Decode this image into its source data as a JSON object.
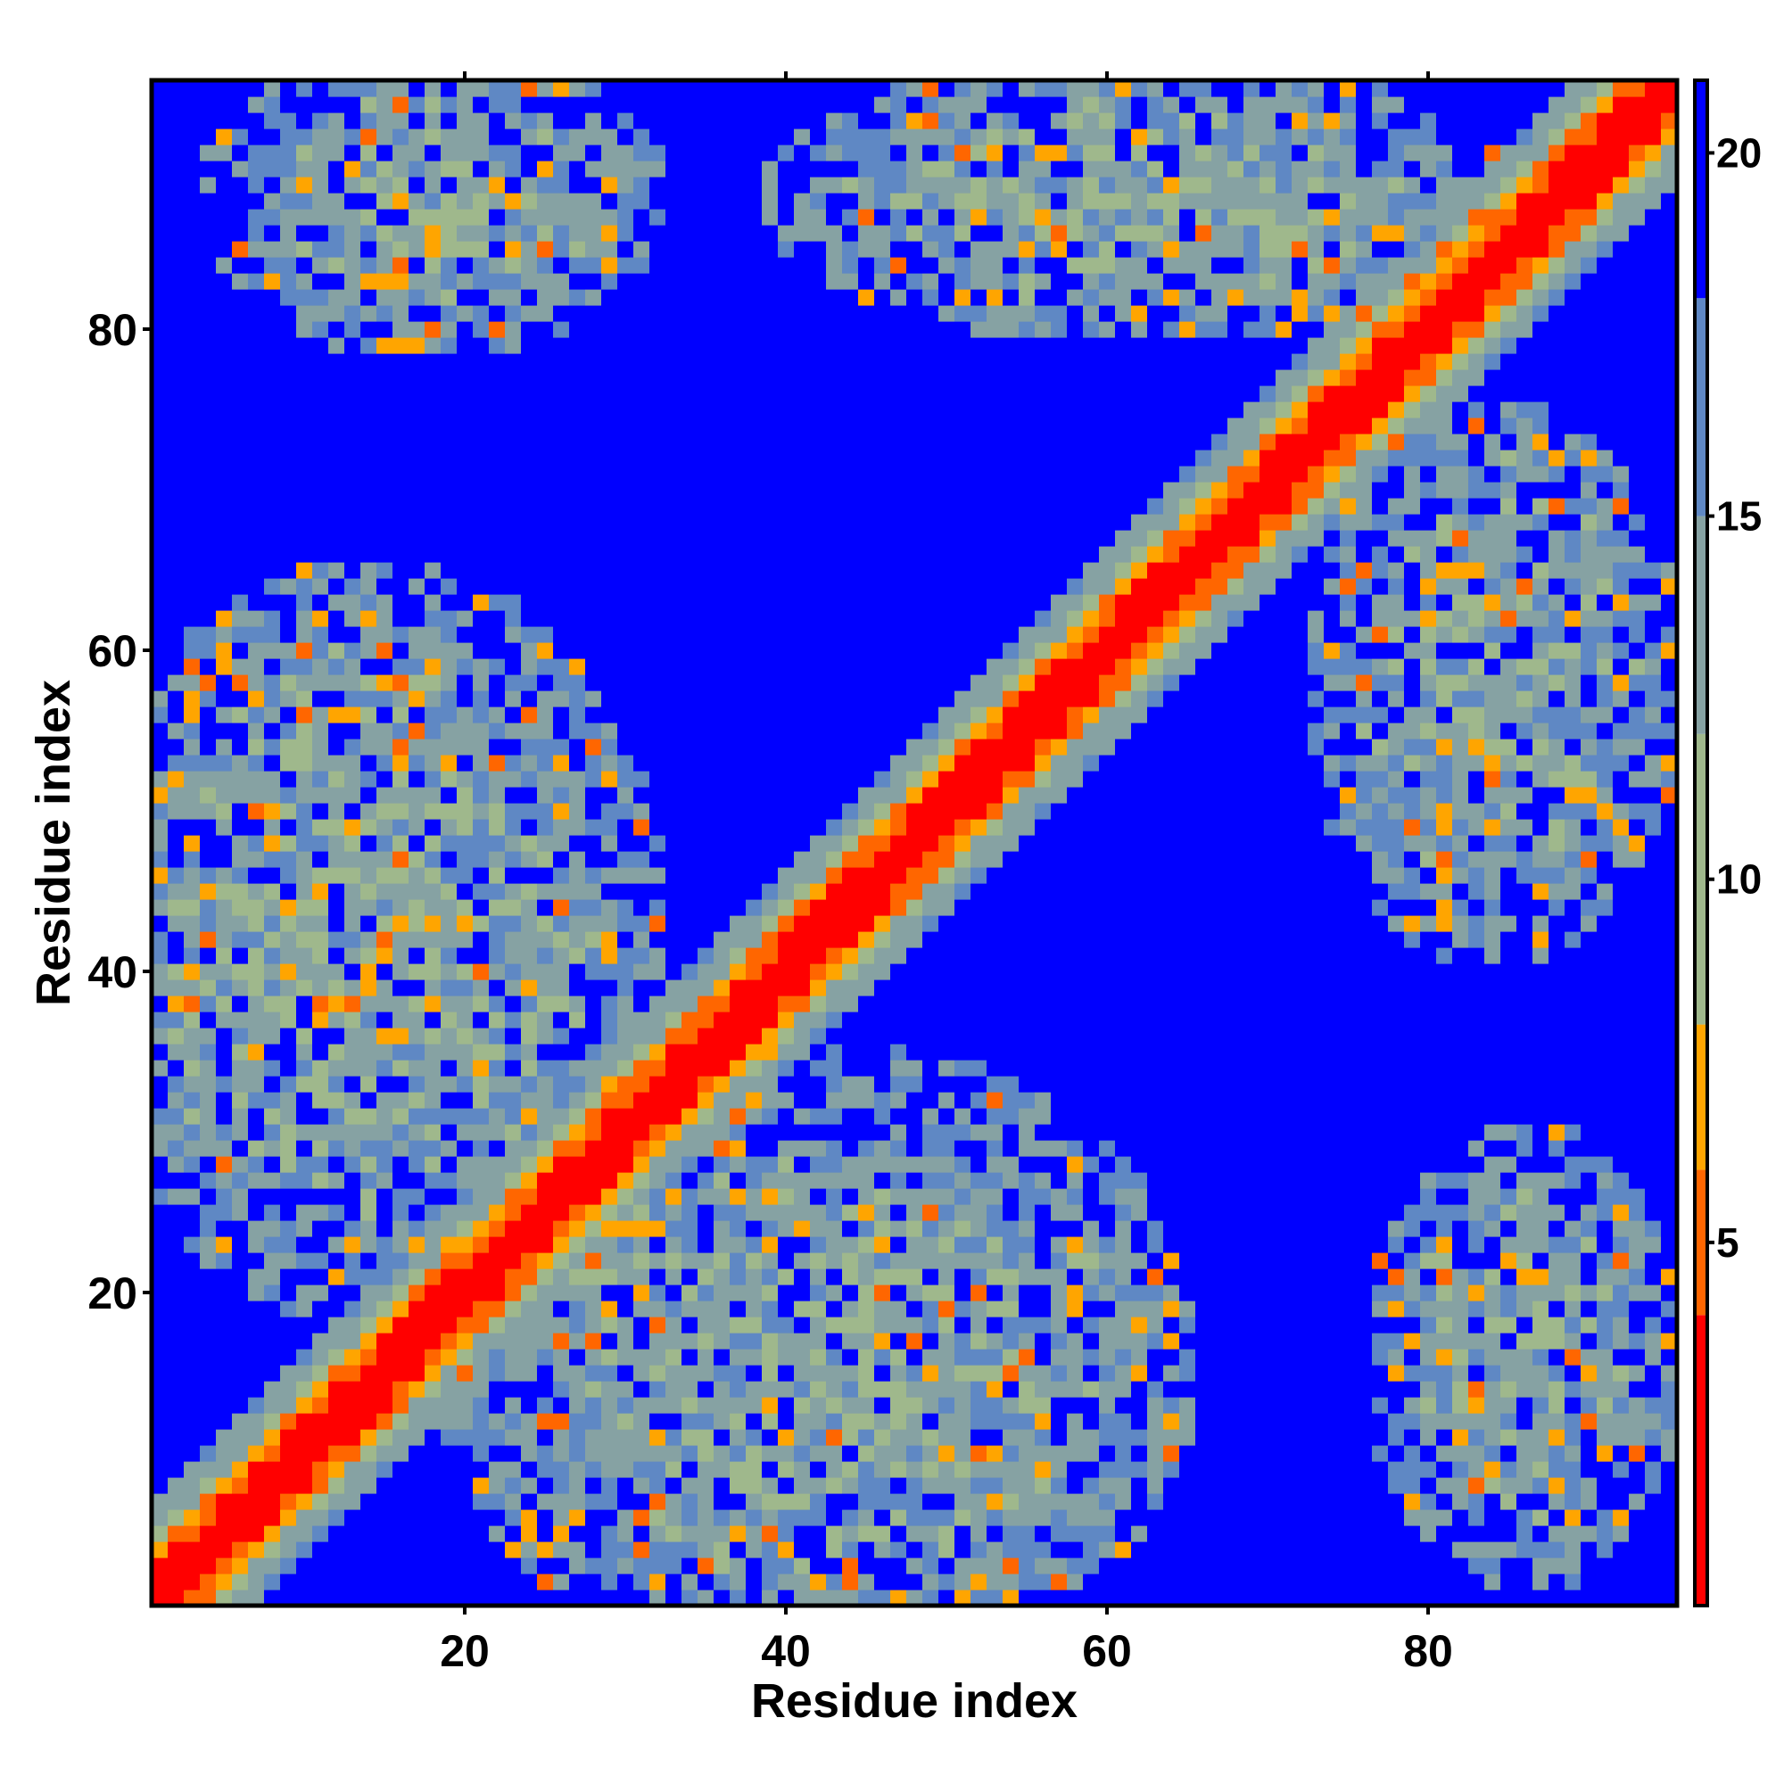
{
  "chart_data": {
    "type": "heatmap",
    "title": "",
    "xlabel": "Residue index",
    "ylabel": "Residue index",
    "n_residues": 95,
    "xlim": [
      0.5,
      95.5
    ],
    "ylim": [
      0.5,
      95.5
    ],
    "x_ticks": [
      20,
      40,
      60,
      80
    ],
    "y_ticks": [
      20,
      40,
      60,
      80
    ],
    "value_description": "pairwise distance between residues (contact map)",
    "colorbar": {
      "range": [
        0,
        21
      ],
      "ticks": [
        5,
        10,
        15,
        20
      ],
      "placement": "right",
      "color_bins": [
        {
          "max": 4,
          "color": "#ff0000"
        },
        {
          "max": 6,
          "color": "#ff6600"
        },
        {
          "max": 8,
          "color": "#ffa500"
        },
        {
          "max": 12,
          "color": "#9fb88c"
        },
        {
          "max": 15,
          "color": "#86a2a3"
        },
        {
          "max": 18,
          "color": "#5f88c4"
        },
        {
          "max": 21,
          "color": "#0000ff"
        }
      ]
    },
    "diagonal_band": {
      "from": [
        1,
        1
      ],
      "to": [
        95,
        95
      ],
      "core_value": 2,
      "mid_value": 5,
      "halfwidth_residues": 6
    },
    "contact_regions": [
      {
        "x_range": [
          1,
          48
        ],
        "y_range": [
          1,
          68
        ],
        "desc": "upper-left / lower-left scattered contacts",
        "center": [
          14,
          42
        ],
        "radius": [
          19,
          24
        ]
      },
      {
        "x_range": [
          20,
          66
        ],
        "y_range": [
          1,
          38
        ],
        "desc": "lower-middle scattered contacts",
        "center": [
          42,
          16
        ],
        "radius": [
          24,
          20
        ]
      },
      {
        "x_range": [
          5,
          36
        ],
        "y_range": [
          76,
          95
        ],
        "desc": "top-left contacts",
        "center": [
          18,
          88
        ],
        "radius": [
          15,
          10
        ]
      },
      {
        "x_range": [
          40,
          95
        ],
        "y_range": [
          70,
          95
        ],
        "desc": "top-right contacts along diagonal",
        "center": [
          62,
          88
        ],
        "radius": [
          24,
          9
        ]
      },
      {
        "x_range": [
          73,
          95
        ],
        "y_range": [
          40,
          75
        ],
        "desc": "right side contacts",
        "center": [
          84,
          58
        ],
        "radius": [
          12,
          18
        ]
      },
      {
        "x_range": [
          76,
          95
        ],
        "y_range": [
          1,
          33
        ],
        "desc": "bottom-right contacts",
        "center": [
          86,
          16
        ],
        "radius": [
          10,
          15
        ]
      }
    ],
    "grid": false,
    "legend": "none"
  }
}
